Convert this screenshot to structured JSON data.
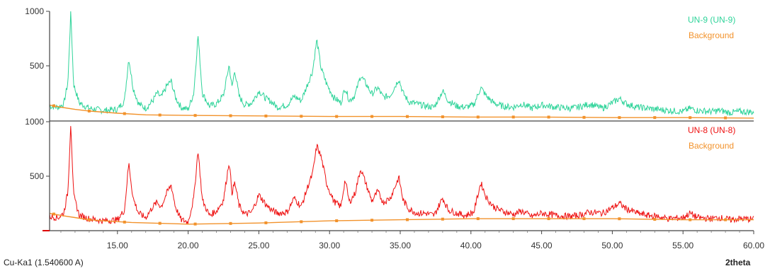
{
  "chart_data": {
    "type": "line",
    "wavelength_label": "Cu-Ka1 (1.540600 A)",
    "x_axis_label": "2theta",
    "x_range": [
      10.2,
      60.0
    ],
    "x_ticks": [
      "15.00",
      "20.00",
      "25.00",
      "30.00",
      "35.00",
      "40.00",
      "45.00",
      "50.00",
      "55.00",
      "60.00"
    ],
    "colors": {
      "un9": "#2fd49a",
      "un8": "#ee1111",
      "background": "#f2922b",
      "axis": "#444444",
      "red_axis": "#dd0000"
    },
    "panels": [
      {
        "legend": [
          {
            "label": "UN-9 (UN-9)",
            "color": "#2fd49a"
          },
          {
            "label": "Background",
            "color": "#f2922b"
          }
        ],
        "y_range": [
          0,
          1000
        ],
        "y_ticks": [
          "1000",
          "500"
        ],
        "series": [
          {
            "name": "UN-9 (UN-9)",
            "color": "#2fd49a",
            "x": [
              10.2,
              10.8,
              11.2,
              11.5,
              11.7,
              11.9,
              12.3,
              13,
              14,
              15,
              15.5,
              15.8,
              16.1,
              16.5,
              17,
              17.5,
              17.8,
              18.1,
              18.5,
              18.8,
              19.1,
              19.5,
              20,
              20.4,
              20.7,
              21,
              21.5,
              22,
              22.5,
              22.9,
              23.1,
              23.3,
              23.6,
              24,
              24.5,
              25,
              25.5,
              25.9,
              26.3,
              27,
              27.5,
              28,
              28.5,
              28.8,
              29.1,
              29.4,
              29.8,
              30.3,
              30.8,
              31.1,
              31.4,
              31.8,
              32.2,
              32.6,
              33,
              33.4,
              33.8,
              34.3,
              34.9,
              35.2,
              35.6,
              36.2,
              36.8,
              37.4,
              38,
              38.4,
              39,
              39.6,
              40.2,
              40.7,
              41.1,
              41.6,
              42.2,
              43,
              43.6,
              44.3,
              45,
              46,
              47,
              47.6,
              48.4,
              49.3,
              50,
              50.5,
              51,
              51.8,
              52.5,
              53.2,
              54,
              55,
              55.5,
              56,
              57,
              57.6,
              58.3,
              59,
              60
            ],
            "y": [
              130,
              120,
              150,
              350,
              1000,
              330,
              160,
              110,
              90,
              100,
              180,
              570,
              300,
              150,
              110,
              180,
              250,
              210,
              320,
              360,
              210,
              120,
              100,
              250,
              780,
              250,
              130,
              150,
              230,
              510,
              300,
              460,
              220,
              140,
              160,
              270,
              200,
              170,
              120,
              140,
              220,
              180,
              350,
              450,
              740,
              480,
              330,
              210,
              160,
              300,
              180,
              230,
              410,
              330,
              240,
              300,
              210,
              230,
              380,
              250,
              170,
              150,
              130,
              120,
              270,
              180,
              130,
              120,
              140,
              300,
              220,
              160,
              130,
              120,
              150,
              110,
              140,
              120,
              110,
              120,
              150,
              110,
              160,
              200,
              150,
              120,
              110,
              100,
              90,
              80,
              110,
              90,
              80,
              90,
              70,
              80,
              75
            ]
          },
          {
            "name": "Background",
            "color": "#f2922b",
            "x": [
              10.2,
              11,
              12,
              13,
              15,
              17,
              20,
              25,
              30,
              35,
              40,
              45,
              50,
              55,
              60
            ],
            "y": [
              140,
              120,
              100,
              85,
              65,
              50,
              45,
              40,
              35,
              35,
              30,
              30,
              25,
              25,
              20
            ]
          }
        ]
      },
      {
        "legend": [
          {
            "label": "UN-8 (UN-8)",
            "color": "#ee1111"
          },
          {
            "label": "Background",
            "color": "#f2922b"
          }
        ],
        "y_range": [
          0,
          1000
        ],
        "y_ticks": [
          "1000",
          "500"
        ],
        "series": [
          {
            "name": "UN-8 (UN-8)",
            "color": "#ee1111",
            "x": [
              10.2,
              10.8,
              11.2,
              11.5,
              11.7,
              11.9,
              12.3,
              13,
              14,
              15,
              15.5,
              15.8,
              16.1,
              16.5,
              17,
              17.5,
              17.8,
              18.1,
              18.5,
              18.8,
              19.1,
              19.5,
              20,
              20.4,
              20.7,
              21,
              21.5,
              22,
              22.5,
              22.9,
              23.1,
              23.3,
              23.6,
              24,
              24.5,
              25,
              25.5,
              25.9,
              26.3,
              27,
              27.5,
              28,
              28.5,
              28.8,
              29.1,
              29.4,
              29.8,
              30.3,
              30.8,
              31.1,
              31.4,
              31.8,
              32.2,
              32.6,
              33,
              33.4,
              33.8,
              34.3,
              34.9,
              35.2,
              35.6,
              36.2,
              36.8,
              37.4,
              38,
              38.4,
              39,
              39.6,
              40.2,
              40.7,
              41.1,
              41.6,
              42.2,
              43,
              43.6,
              44.3,
              45,
              46,
              47,
              47.6,
              48.4,
              49.3,
              50,
              50.5,
              51,
              51.8,
              52.5,
              53.2,
              54,
              55,
              55.5,
              56,
              57,
              57.6,
              58.3,
              59,
              60
            ],
            "y": [
              130,
              120,
              160,
              360,
              1000,
              320,
              140,
              110,
              90,
              100,
              190,
              620,
              300,
              160,
              120,
              220,
              260,
              220,
              350,
              420,
              220,
              100,
              80,
              300,
              740,
              280,
              140,
              180,
              280,
              640,
              350,
              440,
              230,
              150,
              170,
              330,
              240,
              190,
              160,
              170,
              300,
              220,
              420,
              520,
              780,
              680,
              430,
              270,
              220,
              470,
              260,
              340,
              570,
              420,
              270,
              360,
              260,
              300,
              490,
              280,
              200,
              160,
              160,
              140,
              300,
              190,
              160,
              140,
              170,
              440,
              300,
              220,
              180,
              150,
              180,
              130,
              160,
              140,
              130,
              140,
              170,
              160,
              210,
              250,
              200,
              160,
              140,
              130,
              110,
              120,
              160,
              120,
              110,
              120,
              100,
              110,
              105
            ]
          },
          {
            "name": "Background",
            "color": "#f2922b",
            "x": [
              10.2,
              11,
              12,
              13,
              14,
              16,
              20,
              25,
              30,
              35,
              40,
              45,
              50,
              55,
              60
            ],
            "y": [
              160,
              140,
              120,
              100,
              90,
              75,
              60,
              70,
              90,
              100,
              110,
              110,
              110,
              100,
              100
            ]
          }
        ]
      }
    ]
  }
}
